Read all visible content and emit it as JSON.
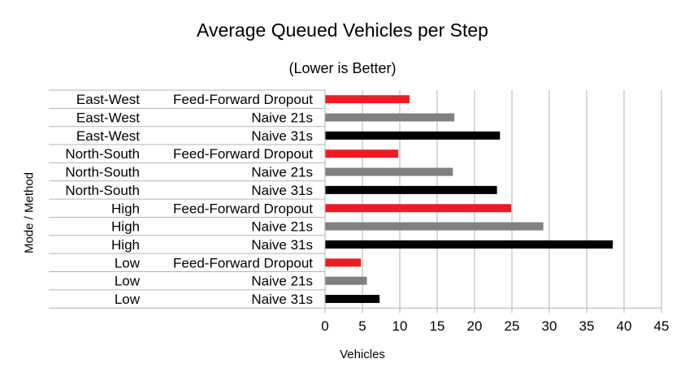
{
  "chart_data": {
    "type": "bar",
    "orientation": "horizontal",
    "title": "Average Queued Vehicles per Step",
    "subtitle": "(Lower is Better)",
    "xlabel": "Vehicles",
    "ylabel": "Mode / Method",
    "xlim": [
      0,
      45
    ],
    "xticks": [
      "0",
      "5",
      "10",
      "15",
      "20",
      "25",
      "30",
      "35",
      "40",
      "45"
    ],
    "grid": "vertical",
    "categories": [
      {
        "mode": "East-West",
        "method": "Feed-Forward Dropout",
        "value": 11.3,
        "color": "#ed1c24"
      },
      {
        "mode": "East-West",
        "method": "Naive 21s",
        "value": 17.3,
        "color": "#808080"
      },
      {
        "mode": "East-West",
        "method": "Naive 31s",
        "value": 23.4,
        "color": "#000000"
      },
      {
        "mode": "North-South",
        "method": "Feed-Forward Dropout",
        "value": 9.8,
        "color": "#ed1c24"
      },
      {
        "mode": "North-South",
        "method": "Naive 21s",
        "value": 17.1,
        "color": "#808080"
      },
      {
        "mode": "North-South",
        "method": "Naive 31s",
        "value": 23.0,
        "color": "#000000"
      },
      {
        "mode": "High",
        "method": "Feed-Forward Dropout",
        "value": 24.9,
        "color": "#ed1c24"
      },
      {
        "mode": "High",
        "method": "Naive 21s",
        "value": 29.2,
        "color": "#808080"
      },
      {
        "mode": "High",
        "method": "Naive 31s",
        "value": 38.5,
        "color": "#000000"
      },
      {
        "mode": "Low",
        "method": "Feed-Forward Dropout",
        "value": 4.8,
        "color": "#ed1c24"
      },
      {
        "mode": "Low",
        "method": "Naive 21s",
        "value": 5.6,
        "color": "#808080"
      },
      {
        "mode": "Low",
        "method": "Naive 31s",
        "value": 7.3,
        "color": "#000000"
      }
    ]
  }
}
